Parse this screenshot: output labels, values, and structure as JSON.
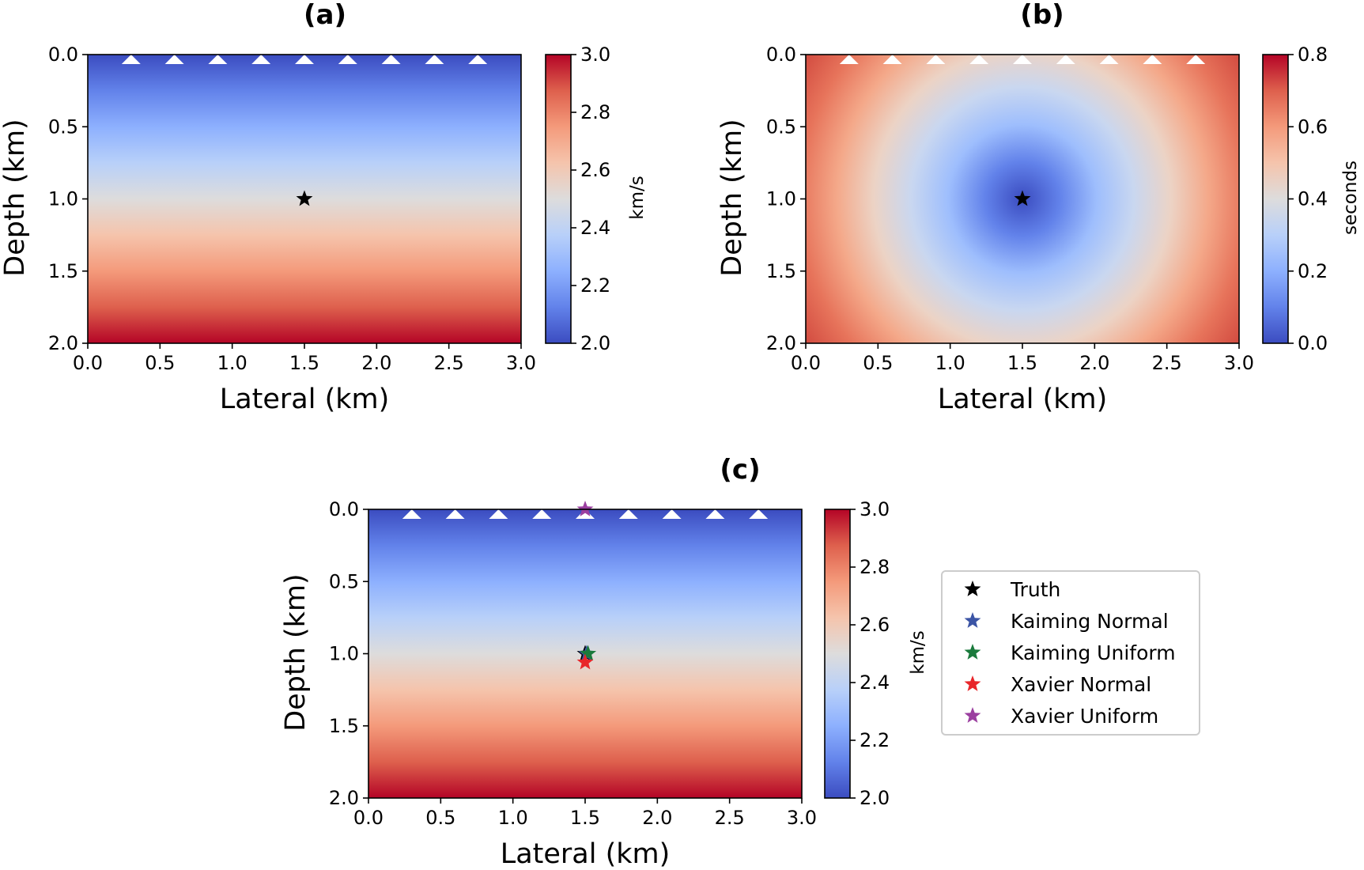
{
  "chart_data": [
    {
      "id": "a",
      "type": "heatmap",
      "title": "(a)",
      "xlabel": "Lateral (km)",
      "ylabel": "Depth (km)",
      "xlim": [
        0.0,
        3.0
      ],
      "ylim": [
        2.0,
        0.0
      ],
      "xticks": [
        "0.0",
        "0.5",
        "1.0",
        "1.5",
        "2.0",
        "2.5",
        "3.0"
      ],
      "yticks": [
        "0.0",
        "0.5",
        "1.0",
        "1.5",
        "2.0"
      ],
      "field": "velocity increasing linearly with depth",
      "colormap": "coolwarm",
      "colorbar": {
        "label": "km/s",
        "range": [
          2.0,
          3.0
        ],
        "ticks": [
          "2.0",
          "2.2",
          "2.4",
          "2.6",
          "2.8",
          "3.0"
        ]
      },
      "receivers": {
        "marker": "white triangle",
        "depth": 0.0,
        "x": [
          0.3,
          0.6,
          0.9,
          1.2,
          1.5,
          1.8,
          2.1,
          2.4,
          2.7
        ]
      },
      "markers": [
        {
          "name": "Truth",
          "x": 1.5,
          "y": 1.0,
          "color": "#000000"
        }
      ]
    },
    {
      "id": "b",
      "type": "heatmap",
      "title": "(b)",
      "xlabel": "Lateral (km)",
      "ylabel": "Depth (km)",
      "xlim": [
        0.0,
        3.0
      ],
      "ylim": [
        2.0,
        0.0
      ],
      "xticks": [
        "0.0",
        "0.5",
        "1.0",
        "1.5",
        "2.0",
        "2.5",
        "3.0"
      ],
      "yticks": [
        "0.0",
        "0.5",
        "1.0",
        "1.5",
        "2.0"
      ],
      "field": "traveltime from source at (1.5, 1.0)",
      "colormap": "coolwarm",
      "colorbar": {
        "label": "seconds",
        "range": [
          0.0,
          0.8
        ],
        "ticks": [
          "0.0",
          "0.2",
          "0.4",
          "0.6",
          "0.8"
        ]
      },
      "receivers": {
        "marker": "white triangle",
        "depth": 0.0,
        "x": [
          0.3,
          0.6,
          0.9,
          1.2,
          1.5,
          1.8,
          2.1,
          2.4,
          2.7
        ]
      },
      "markers": [
        {
          "name": "Truth",
          "x": 1.5,
          "y": 1.0,
          "color": "#000000"
        }
      ]
    },
    {
      "id": "c",
      "type": "heatmap",
      "title": "(c)",
      "xlabel": "Lateral (km)",
      "ylabel": "Depth (km)",
      "xlim": [
        0.0,
        3.0
      ],
      "ylim": [
        2.0,
        0.0
      ],
      "xticks": [
        "0.0",
        "0.5",
        "1.0",
        "1.5",
        "2.0",
        "2.5",
        "3.0"
      ],
      "yticks": [
        "0.0",
        "0.5",
        "1.0",
        "1.5",
        "2.0"
      ],
      "field": "velocity increasing linearly with depth",
      "colormap": "coolwarm",
      "colorbar": {
        "label": "km/s",
        "range": [
          2.0,
          3.0
        ],
        "ticks": [
          "2.0",
          "2.2",
          "2.4",
          "2.6",
          "2.8",
          "3.0"
        ]
      },
      "receivers": {
        "marker": "white triangle",
        "depth": 0.0,
        "x": [
          0.3,
          0.6,
          0.9,
          1.2,
          1.5,
          1.8,
          2.1,
          2.4,
          2.7
        ]
      },
      "markers": [
        {
          "name": "Truth",
          "x": 1.5,
          "y": 1.0,
          "color": "#000000"
        },
        {
          "name": "Kaiming Normal",
          "x": 1.51,
          "y": 1.0,
          "color": "#3b54a5"
        },
        {
          "name": "Kaiming Uniform",
          "x": 1.52,
          "y": 1.0,
          "color": "#1a7a3c"
        },
        {
          "name": "Xavier Normal",
          "x": 1.5,
          "y": 1.06,
          "color": "#e8262a"
        },
        {
          "name": "Xavier Uniform",
          "x": 1.5,
          "y": 0.0,
          "color": "#9b3fa0"
        }
      ],
      "legend": {
        "placement": "right",
        "entries": [
          "Truth",
          "Kaiming Normal",
          "Kaiming Uniform",
          "Xavier Normal",
          "Xavier Uniform"
        ]
      }
    }
  ]
}
